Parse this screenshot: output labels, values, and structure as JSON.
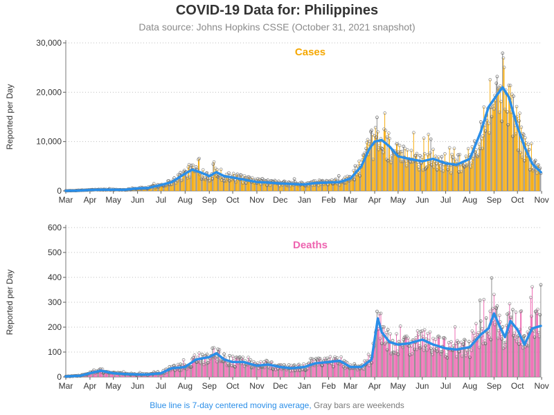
{
  "title": "COVID-19 Data for: Philippines",
  "subtitle": "Data source: Johns Hopkins CSSE (October 31, 2021 snapshot)",
  "footer": {
    "blue_text": "Blue line is 7-day centered moving average,",
    "gray_text": "Gray bars are weekends"
  },
  "colors": {
    "cases": "#f5a700",
    "deaths": "#ee64b0",
    "moving_average": "#2a8ee8",
    "weekend": "#8a8a8a"
  },
  "chart_data": [
    {
      "type": "bar",
      "title": "Cases",
      "ylabel": "Reported per Day",
      "ylim": [
        0,
        30000
      ],
      "yticks": [
        0,
        10000,
        20000,
        30000
      ],
      "ytick_labels": [
        "0",
        "10,000",
        "20,000",
        "30,000"
      ],
      "x_range": [
        "2020-03-01",
        "2021-10-31"
      ],
      "xtick_labels": [
        "Mar",
        "Apr",
        "May",
        "Jun",
        "Jul",
        "Aug",
        "Sep",
        "Oct",
        "Nov",
        "Dec",
        "Jan",
        "Feb",
        "Mar",
        "Apr",
        "May",
        "Jun",
        "Jul",
        "Aug",
        "Sep",
        "Oct",
        "Nov"
      ],
      "grid": "horizontal dotted",
      "series": [
        {
          "role": "daily",
          "monthly_values": [
            {
              "x": "2020-03-01",
              "y": 20
            },
            {
              "x": "2020-03-15",
              "y": 60
            },
            {
              "x": "2020-04-01",
              "y": 200
            },
            {
              "x": "2020-04-15",
              "y": 250
            },
            {
              "x": "2020-05-01",
              "y": 250
            },
            {
              "x": "2020-05-15",
              "y": 220
            },
            {
              "x": "2020-06-01",
              "y": 500
            },
            {
              "x": "2020-06-15",
              "y": 600
            },
            {
              "x": "2020-07-01",
              "y": 1200
            },
            {
              "x": "2020-07-15",
              "y": 1800
            },
            {
              "x": "2020-08-01",
              "y": 3500
            },
            {
              "x": "2020-08-10",
              "y": 4300
            },
            {
              "x": "2020-08-20",
              "y": 3800
            },
            {
              "x": "2020-09-01",
              "y": 3000
            },
            {
              "x": "2020-09-10",
              "y": 3800
            },
            {
              "x": "2020-09-20",
              "y": 3000
            },
            {
              "x": "2020-10-01",
              "y": 2700
            },
            {
              "x": "2020-10-15",
              "y": 2300
            },
            {
              "x": "2020-11-01",
              "y": 1800
            },
            {
              "x": "2020-11-15",
              "y": 1700
            },
            {
              "x": "2020-12-01",
              "y": 1500
            },
            {
              "x": "2020-12-15",
              "y": 1400
            },
            {
              "x": "2021-01-01",
              "y": 1300
            },
            {
              "x": "2021-01-15",
              "y": 1600
            },
            {
              "x": "2021-02-01",
              "y": 1700
            },
            {
              "x": "2021-02-15",
              "y": 1800
            },
            {
              "x": "2021-03-01",
              "y": 2500
            },
            {
              "x": "2021-03-15",
              "y": 5000
            },
            {
              "x": "2021-03-25",
              "y": 8500
            },
            {
              "x": "2021-04-01",
              "y": 10000
            },
            {
              "x": "2021-04-10",
              "y": 10300
            },
            {
              "x": "2021-04-20",
              "y": 9000
            },
            {
              "x": "2021-05-01",
              "y": 7000
            },
            {
              "x": "2021-05-15",
              "y": 6500
            },
            {
              "x": "2021-06-01",
              "y": 6000
            },
            {
              "x": "2021-06-15",
              "y": 6500
            },
            {
              "x": "2021-07-01",
              "y": 5600
            },
            {
              "x": "2021-07-15",
              "y": 5300
            },
            {
              "x": "2021-08-01",
              "y": 6500
            },
            {
              "x": "2021-08-15",
              "y": 12000
            },
            {
              "x": "2021-08-25",
              "y": 17000
            },
            {
              "x": "2021-09-05",
              "y": 19500
            },
            {
              "x": "2021-09-12",
              "y": 21000
            },
            {
              "x": "2021-09-20",
              "y": 19000
            },
            {
              "x": "2021-10-01",
              "y": 13000
            },
            {
              "x": "2021-10-10",
              "y": 9000
            },
            {
              "x": "2021-10-20",
              "y": 5500
            },
            {
              "x": "2021-10-31",
              "y": 3800
            }
          ]
        },
        {
          "role": "moving_average",
          "values": [
            {
              "x": "2020-03-01",
              "y": 20
            },
            {
              "x": "2020-03-15",
              "y": 60
            },
            {
              "x": "2020-04-01",
              "y": 200
            },
            {
              "x": "2020-04-15",
              "y": 250
            },
            {
              "x": "2020-05-01",
              "y": 250
            },
            {
              "x": "2020-05-15",
              "y": 220
            },
            {
              "x": "2020-06-01",
              "y": 500
            },
            {
              "x": "2020-06-15",
              "y": 600
            },
            {
              "x": "2020-07-01",
              "y": 1200
            },
            {
              "x": "2020-07-15",
              "y": 1800
            },
            {
              "x": "2020-08-01",
              "y": 3500
            },
            {
              "x": "2020-08-10",
              "y": 4300
            },
            {
              "x": "2020-08-20",
              "y": 3800
            },
            {
              "x": "2020-09-01",
              "y": 3000
            },
            {
              "x": "2020-09-10",
              "y": 3800
            },
            {
              "x": "2020-09-20",
              "y": 3000
            },
            {
              "x": "2020-10-01",
              "y": 2700
            },
            {
              "x": "2020-10-15",
              "y": 2300
            },
            {
              "x": "2020-11-01",
              "y": 1800
            },
            {
              "x": "2020-11-15",
              "y": 1700
            },
            {
              "x": "2020-12-01",
              "y": 1500
            },
            {
              "x": "2020-12-15",
              "y": 1400
            },
            {
              "x": "2021-01-01",
              "y": 1300
            },
            {
              "x": "2021-01-15",
              "y": 1600
            },
            {
              "x": "2021-02-01",
              "y": 1700
            },
            {
              "x": "2021-02-15",
              "y": 1800
            },
            {
              "x": "2021-03-01",
              "y": 2500
            },
            {
              "x": "2021-03-15",
              "y": 5000
            },
            {
              "x": "2021-03-25",
              "y": 8500
            },
            {
              "x": "2021-04-01",
              "y": 10000
            },
            {
              "x": "2021-04-10",
              "y": 10300
            },
            {
              "x": "2021-04-20",
              "y": 9000
            },
            {
              "x": "2021-05-01",
              "y": 7000
            },
            {
              "x": "2021-05-15",
              "y": 6500
            },
            {
              "x": "2021-06-01",
              "y": 6000
            },
            {
              "x": "2021-06-15",
              "y": 6500
            },
            {
              "x": "2021-07-01",
              "y": 5600
            },
            {
              "x": "2021-07-15",
              "y": 5300
            },
            {
              "x": "2021-08-01",
              "y": 6500
            },
            {
              "x": "2021-08-15",
              "y": 12000
            },
            {
              "x": "2021-08-25",
              "y": 17000
            },
            {
              "x": "2021-09-05",
              "y": 19500
            },
            {
              "x": "2021-09-12",
              "y": 21000
            },
            {
              "x": "2021-09-20",
              "y": 19000
            },
            {
              "x": "2021-10-01",
              "y": 13000
            },
            {
              "x": "2021-10-10",
              "y": 9000
            },
            {
              "x": "2021-10-20",
              "y": 5500
            },
            {
              "x": "2021-10-31",
              "y": 3800
            }
          ]
        }
      ]
    },
    {
      "type": "bar",
      "title": "Deaths",
      "ylabel": "Reported per Day",
      "ylim": [
        0,
        600
      ],
      "yticks": [
        0,
        100,
        200,
        300,
        400,
        500,
        600
      ],
      "ytick_labels": [
        "0",
        "100",
        "200",
        "300",
        "400",
        "500",
        "600"
      ],
      "x_range": [
        "2020-03-01",
        "2021-10-31"
      ],
      "xtick_labels": [
        "Mar",
        "Apr",
        "May",
        "Jun",
        "Jul",
        "Aug",
        "Sep",
        "Oct",
        "Nov",
        "Dec",
        "Jan",
        "Feb",
        "Mar",
        "Apr",
        "May",
        "Jun",
        "Jul",
        "Aug",
        "Sep",
        "Oct",
        "Nov"
      ],
      "grid": "horizontal dotted",
      "series": [
        {
          "role": "daily",
          "monthly_values": [
            {
              "x": "2020-03-01",
              "y": 2
            },
            {
              "x": "2020-03-20",
              "y": 5
            },
            {
              "x": "2020-04-01",
              "y": 15
            },
            {
              "x": "2020-04-15",
              "y": 25
            },
            {
              "x": "2020-05-01",
              "y": 15
            },
            {
              "x": "2020-05-15",
              "y": 12
            },
            {
              "x": "2020-06-01",
              "y": 10
            },
            {
              "x": "2020-06-15",
              "y": 10
            },
            {
              "x": "2020-07-01",
              "y": 15
            },
            {
              "x": "2020-07-15",
              "y": 35
            },
            {
              "x": "2020-08-01",
              "y": 40
            },
            {
              "x": "2020-08-15",
              "y": 70
            },
            {
              "x": "2020-09-01",
              "y": 80
            },
            {
              "x": "2020-09-10",
              "y": 95
            },
            {
              "x": "2020-09-20",
              "y": 70
            },
            {
              "x": "2020-10-01",
              "y": 60
            },
            {
              "x": "2020-10-15",
              "y": 60
            },
            {
              "x": "2020-11-01",
              "y": 45
            },
            {
              "x": "2020-11-15",
              "y": 50
            },
            {
              "x": "2020-12-01",
              "y": 40
            },
            {
              "x": "2020-12-15",
              "y": 35
            },
            {
              "x": "2021-01-01",
              "y": 40
            },
            {
              "x": "2021-01-15",
              "y": 55
            },
            {
              "x": "2021-02-01",
              "y": 60
            },
            {
              "x": "2021-02-15",
              "y": 65
            },
            {
              "x": "2021-03-01",
              "y": 40
            },
            {
              "x": "2021-03-15",
              "y": 40
            },
            {
              "x": "2021-03-28",
              "y": 70
            },
            {
              "x": "2021-04-05",
              "y": 235
            },
            {
              "x": "2021-04-10",
              "y": 180
            },
            {
              "x": "2021-04-20",
              "y": 140
            },
            {
              "x": "2021-05-01",
              "y": 130
            },
            {
              "x": "2021-05-15",
              "y": 135
            },
            {
              "x": "2021-06-01",
              "y": 150
            },
            {
              "x": "2021-06-15",
              "y": 130
            },
            {
              "x": "2021-07-01",
              "y": 115
            },
            {
              "x": "2021-07-15",
              "y": 110
            },
            {
              "x": "2021-08-01",
              "y": 120
            },
            {
              "x": "2021-08-15",
              "y": 170
            },
            {
              "x": "2021-08-25",
              "y": 195
            },
            {
              "x": "2021-09-01",
              "y": 255
            },
            {
              "x": "2021-09-08",
              "y": 205
            },
            {
              "x": "2021-09-15",
              "y": 160
            },
            {
              "x": "2021-09-22",
              "y": 225
            },
            {
              "x": "2021-10-01",
              "y": 190
            },
            {
              "x": "2021-10-10",
              "y": 130
            },
            {
              "x": "2021-10-20",
              "y": 195
            },
            {
              "x": "2021-10-31",
              "y": 205
            }
          ]
        },
        {
          "role": "moving_average",
          "values": [
            {
              "x": "2020-03-01",
              "y": 2
            },
            {
              "x": "2020-03-20",
              "y": 5
            },
            {
              "x": "2020-04-01",
              "y": 15
            },
            {
              "x": "2020-04-15",
              "y": 25
            },
            {
              "x": "2020-05-01",
              "y": 15
            },
            {
              "x": "2020-05-15",
              "y": 12
            },
            {
              "x": "2020-06-01",
              "y": 10
            },
            {
              "x": "2020-06-15",
              "y": 10
            },
            {
              "x": "2020-07-01",
              "y": 15
            },
            {
              "x": "2020-07-15",
              "y": 35
            },
            {
              "x": "2020-08-01",
              "y": 40
            },
            {
              "x": "2020-08-15",
              "y": 70
            },
            {
              "x": "2020-09-01",
              "y": 80
            },
            {
              "x": "2020-09-10",
              "y": 95
            },
            {
              "x": "2020-09-20",
              "y": 70
            },
            {
              "x": "2020-10-01",
              "y": 60
            },
            {
              "x": "2020-10-15",
              "y": 60
            },
            {
              "x": "2020-11-01",
              "y": 45
            },
            {
              "x": "2020-11-15",
              "y": 50
            },
            {
              "x": "2020-12-01",
              "y": 40
            },
            {
              "x": "2020-12-15",
              "y": 35
            },
            {
              "x": "2021-01-01",
              "y": 40
            },
            {
              "x": "2021-01-15",
              "y": 55
            },
            {
              "x": "2021-02-01",
              "y": 60
            },
            {
              "x": "2021-02-15",
              "y": 65
            },
            {
              "x": "2021-03-01",
              "y": 40
            },
            {
              "x": "2021-03-15",
              "y": 40
            },
            {
              "x": "2021-03-28",
              "y": 70
            },
            {
              "x": "2021-04-05",
              "y": 235
            },
            {
              "x": "2021-04-10",
              "y": 180
            },
            {
              "x": "2021-04-20",
              "y": 140
            },
            {
              "x": "2021-05-01",
              "y": 130
            },
            {
              "x": "2021-05-15",
              "y": 135
            },
            {
              "x": "2021-06-01",
              "y": 150
            },
            {
              "x": "2021-06-15",
              "y": 130
            },
            {
              "x": "2021-07-01",
              "y": 115
            },
            {
              "x": "2021-07-15",
              "y": 110
            },
            {
              "x": "2021-08-01",
              "y": 120
            },
            {
              "x": "2021-08-15",
              "y": 170
            },
            {
              "x": "2021-08-25",
              "y": 195
            },
            {
              "x": "2021-09-01",
              "y": 255
            },
            {
              "x": "2021-09-08",
              "y": 205
            },
            {
              "x": "2021-09-15",
              "y": 160
            },
            {
              "x": "2021-09-22",
              "y": 225
            },
            {
              "x": "2021-10-01",
              "y": 190
            },
            {
              "x": "2021-10-10",
              "y": 130
            },
            {
              "x": "2021-10-20",
              "y": 195
            },
            {
              "x": "2021-10-31",
              "y": 205
            }
          ]
        }
      ]
    }
  ]
}
